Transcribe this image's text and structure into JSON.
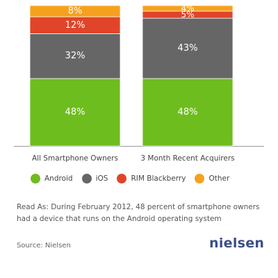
{
  "chart_data": {
    "type": "bar",
    "stacked": true,
    "categories": [
      "All Smartphone Owners",
      "3 Month Recent Acquirers"
    ],
    "series": [
      {
        "name": "Android",
        "values": [
          48,
          48
        ],
        "color": "#6ebd1e",
        "labels": [
          "48%",
          "48%"
        ]
      },
      {
        "name": "iOS",
        "values": [
          32,
          43
        ],
        "color": "#666666",
        "labels": [
          "32%",
          "43%"
        ]
      },
      {
        "name": "RIM Blackberry",
        "values": [
          12,
          5
        ],
        "color": "#e0452a",
        "labels": [
          "12%",
          "5%"
        ]
      },
      {
        "name": "Other",
        "values": [
          8,
          4
        ],
        "color": "#f6a11d",
        "labels": [
          "8%",
          "4%"
        ]
      }
    ],
    "ylim": [
      0,
      100
    ],
    "grid": false,
    "legend_position": "bottom"
  },
  "note": "Read As: During February 2012, 48 percent of smartphone owners had a device that runs on the Android operating system",
  "source": "Source: Nielsen",
  "logo_text": "nielsen"
}
